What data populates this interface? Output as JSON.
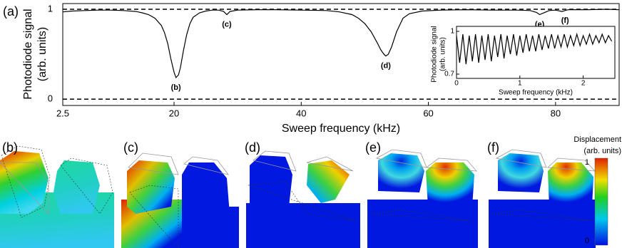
{
  "chart_data": [
    {
      "type": "line",
      "panel_label": "(a)",
      "xlabel": "Sweep frequency (kHz)",
      "ylabel": [
        "Photodiode signal",
        "(arb. units)"
      ],
      "xlim": [
        2.5,
        90
      ],
      "ylim": [
        -0.07,
        1.063
      ],
      "xticks": [
        2.5,
        20,
        40,
        60,
        80
      ],
      "yticks": [
        0,
        1
      ],
      "hlines": [
        0,
        1
      ],
      "color": "#000000",
      "x": [
        2.5,
        4,
        6,
        8,
        10,
        12,
        14,
        15,
        16,
        17,
        18,
        18.5,
        19,
        19.5,
        20,
        20.3,
        20.7,
        21,
        21.5,
        22,
        22.5,
        23,
        24,
        25,
        26,
        27,
        27.8,
        28.3,
        28.8,
        30,
        33,
        36,
        40,
        44,
        46,
        48,
        49,
        50,
        51,
        52,
        52.5,
        53,
        53.3,
        53.7,
        54.2,
        55,
        56,
        57,
        59,
        62,
        66,
        70,
        74,
        76,
        77,
        77.5,
        78,
        79,
        80,
        81,
        81.5,
        82,
        85,
        88,
        90
      ],
      "values": [
        0.97,
        0.98,
        0.985,
        0.99,
        0.99,
        0.985,
        0.975,
        0.96,
        0.94,
        0.9,
        0.82,
        0.74,
        0.62,
        0.45,
        0.3,
        0.24,
        0.27,
        0.35,
        0.55,
        0.72,
        0.84,
        0.91,
        0.96,
        0.98,
        0.99,
        0.99,
        0.975,
        0.94,
        0.975,
        0.99,
        0.995,
        0.995,
        0.99,
        0.985,
        0.97,
        0.94,
        0.9,
        0.84,
        0.75,
        0.62,
        0.55,
        0.5,
        0.48,
        0.5,
        0.58,
        0.75,
        0.9,
        0.95,
        0.98,
        0.99,
        0.995,
        0.99,
        0.99,
        0.985,
        0.965,
        0.94,
        0.955,
        0.985,
        0.99,
        0.975,
        0.985,
        0.995,
        0.995,
        1.0,
        0.995
      ],
      "annotations": [
        {
          "text": "(b)",
          "x": 20.3,
          "y": 0.24
        },
        {
          "text": "(c)",
          "x": 28.3,
          "y": 0.94
        },
        {
          "text": "(d)",
          "x": 53.3,
          "y": 0.48
        },
        {
          "text": "(e)",
          "x": 77.5,
          "y": 0.94
        },
        {
          "text": "(f)",
          "x": 81.5,
          "y": 0.985
        }
      ]
    },
    {
      "type": "line",
      "xlabel": "Sweep frequency (kHz)",
      "ylabel": [
        "Photodiode signal",
        "(arb. units)"
      ],
      "xlim": [
        0,
        2.5
      ],
      "ylim": [
        0.67,
        1.035
      ],
      "xticks": [
        0,
        1,
        2
      ],
      "yticks": [
        0.7,
        1
      ],
      "color": "#000000",
      "x": [
        0,
        0.05,
        0.1,
        0.15,
        0.2,
        0.25,
        0.3,
        0.35,
        0.4,
        0.45,
        0.5,
        0.55,
        0.6,
        0.65,
        0.7,
        0.75,
        0.8,
        0.85,
        0.9,
        0.95,
        1,
        1.05,
        1.1,
        1.15,
        1.2,
        1.25,
        1.3,
        1.35,
        1.4,
        1.45,
        1.5,
        1.55,
        1.6,
        1.65,
        1.7,
        1.75,
        1.8,
        1.85,
        1.9,
        1.95,
        2,
        2.05,
        2.1,
        2.15,
        2.2,
        2.25,
        2.3,
        2.35,
        2.4,
        2.45
      ],
      "values": [
        0.97,
        0.78,
        0.98,
        0.77,
        0.97,
        0.79,
        0.98,
        0.78,
        0.97,
        0.8,
        0.98,
        0.79,
        0.97,
        0.82,
        0.98,
        0.81,
        0.97,
        0.84,
        0.98,
        0.83,
        0.97,
        0.85,
        0.98,
        0.86,
        0.97,
        0.86,
        0.98,
        0.87,
        0.97,
        0.88,
        0.98,
        0.88,
        0.97,
        0.89,
        0.98,
        0.89,
        0.97,
        0.9,
        0.98,
        0.9,
        0.97,
        0.91,
        0.98,
        0.91,
        0.97,
        0.92,
        0.98,
        0.92,
        0.97,
        0.93
      ]
    }
  ],
  "panels": {
    "labels": [
      "(b)",
      "(c)",
      "(d)",
      "(e)",
      "(f)"
    ],
    "colorbar": {
      "title": [
        "Displacement",
        "(arb. units)"
      ],
      "max": "1",
      "min": "0"
    }
  }
}
